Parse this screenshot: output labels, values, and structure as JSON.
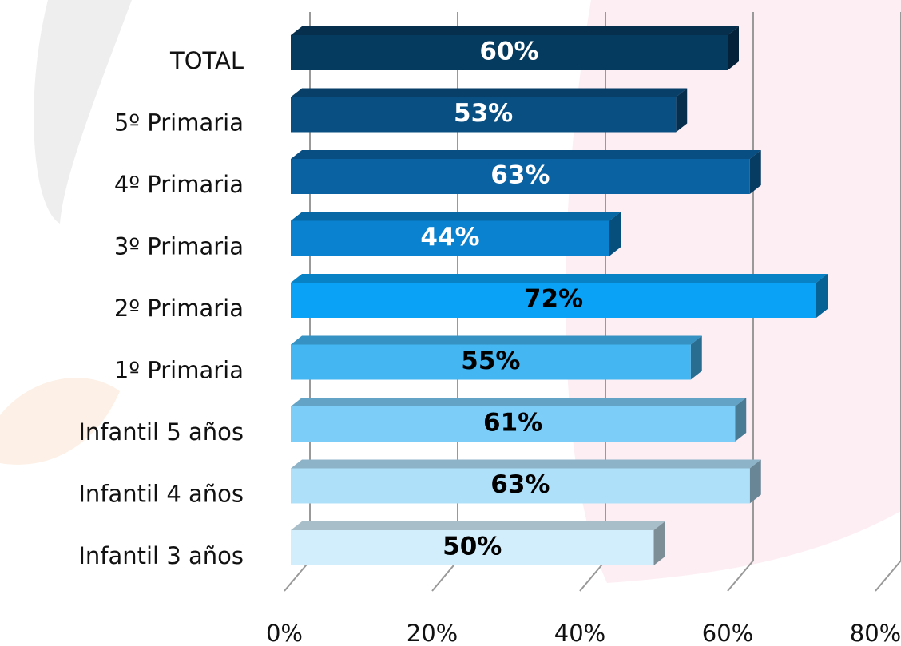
{
  "chart_data": {
    "type": "bar",
    "orientation": "horizontal",
    "categories": [
      "TOTAL",
      "5º Primaria",
      "4º Primaria",
      "3º Primaria",
      "2º Primaria",
      "1º Primaria",
      "Infantil 5 años",
      "Infantil 4 años",
      "Infantil 3 años"
    ],
    "values": [
      60,
      53,
      63,
      44,
      72,
      55,
      61,
      63,
      50
    ],
    "value_labels": [
      "60%",
      "53%",
      "63%",
      "44%",
      "72%",
      "55%",
      "61%",
      "63%",
      "50%"
    ],
    "colors": [
      "#063b60",
      "#0a4f82",
      "#0a62a3",
      "#0a82cf",
      "#0aa2f6",
      "#44b6f2",
      "#7ccdf8",
      "#afe0fa",
      "#d2edfb"
    ],
    "label_colors": [
      "#ffffff",
      "#ffffff",
      "#ffffff",
      "#ffffff",
      "#000000",
      "#000000",
      "#000000",
      "#000000",
      "#000000"
    ],
    "xlim": [
      0,
      80
    ],
    "xticks": [
      {
        "value": 0,
        "label": "0%"
      },
      {
        "value": 20,
        "label": "20%"
      },
      {
        "value": 40,
        "label": "40%"
      },
      {
        "value": 60,
        "label": "60%"
      },
      {
        "value": 80,
        "label": "80%"
      }
    ],
    "grid": true
  }
}
